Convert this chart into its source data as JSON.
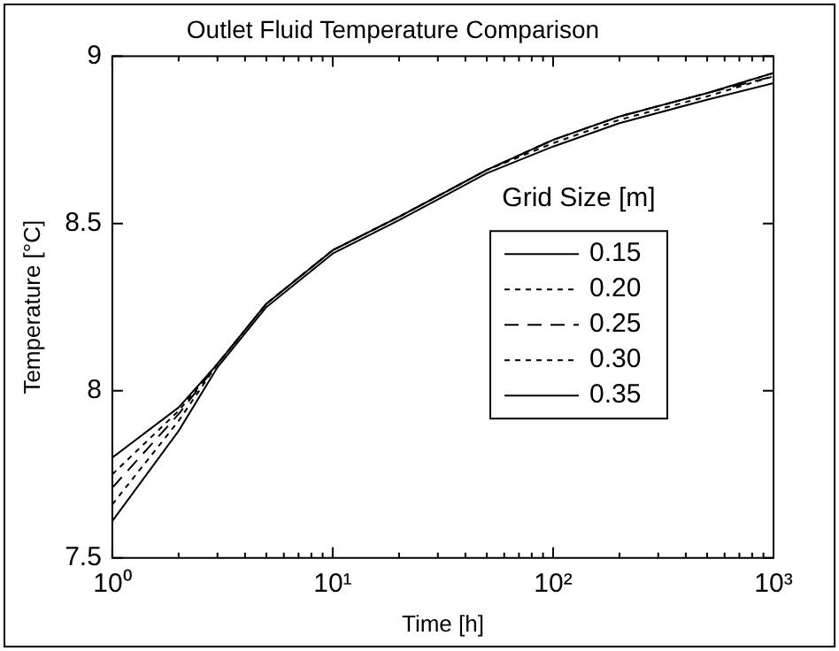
{
  "chart_data": {
    "type": "line",
    "title": "Outlet Fluid Temperature Comparison",
    "xlabel": "Time [h]",
    "ylabel": "Temperature [°C]",
    "legend_title": "Grid Size [m]",
    "log": "x",
    "x": [
      1,
      2,
      3,
      5,
      10,
      20,
      50,
      100,
      200,
      500,
      1000
    ],
    "series": [
      {
        "name": "0.15",
        "color": "#000000",
        "line_style": "solid",
        "values": [
          7.8,
          7.95,
          8.08,
          8.26,
          8.42,
          8.52,
          8.66,
          8.75,
          8.82,
          8.89,
          8.95
        ]
      },
      {
        "name": "0.20",
        "color": "#000000",
        "line_style": "dotted",
        "values": [
          7.75,
          7.94,
          8.08,
          8.26,
          8.42,
          8.52,
          8.66,
          8.75,
          8.82,
          8.89,
          8.95
        ]
      },
      {
        "name": "0.25",
        "color": "#000000",
        "line_style": "dashed",
        "values": [
          7.71,
          7.93,
          8.08,
          8.26,
          8.42,
          8.52,
          8.66,
          8.75,
          8.82,
          8.89,
          8.94
        ]
      },
      {
        "name": "0.30",
        "color": "#000000",
        "line_style": "dotted",
        "values": [
          7.66,
          7.91,
          8.08,
          8.26,
          8.42,
          8.52,
          8.66,
          8.74,
          8.81,
          8.88,
          8.94
        ]
      },
      {
        "name": "0.35",
        "color": "#000000",
        "line_style": "solid",
        "values": [
          7.61,
          7.88,
          8.07,
          8.25,
          8.41,
          8.51,
          8.65,
          8.73,
          8.8,
          8.87,
          8.92
        ]
      }
    ],
    "xlim": [
      1,
      1000
    ],
    "xticks": [
      {
        "value": 1,
        "label": "10⁰"
      },
      {
        "value": 10,
        "label": "10¹"
      },
      {
        "value": 100,
        "label": "10²"
      },
      {
        "value": 1000,
        "label": "10³"
      }
    ],
    "ylim": [
      7.5,
      9
    ],
    "yticks": [
      7.5,
      8,
      8.5,
      9
    ],
    "grid": false,
    "legend": "right",
    "marker": "none"
  }
}
